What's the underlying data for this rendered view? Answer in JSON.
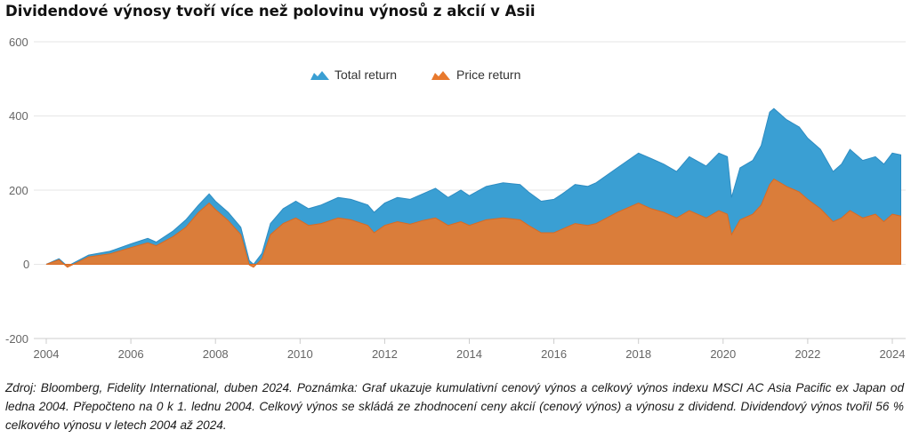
{
  "title": "Dividendové výnosy tvoří více než polovinu výnosů z akcií v Asii",
  "note": "Zdroj: Bloomberg, Fidelity International, duben 2024. Poznámka: Graf ukazuje kumulativní cenový výnos a celkový výnos indexu MSCI AC Asia Pacific ex Japan od ledna 2004. Přepočteno na 0 k 1. lednu 2004. Celkový výnos se skládá ze zhodnocení ceny akcií (cenový výnos) a výnosu z dividend. Dividendový výnos tvořil 56 % celkového výnosu v letech 2004 až 2024.",
  "colors": {
    "total": "#3a9fd3",
    "price": "#e8792d",
    "grid": "#e6e6e6",
    "axis": "#cccccc"
  },
  "chart_data": {
    "type": "area",
    "ylim": [
      -200,
      600
    ],
    "xlim": [
      2004,
      2024.35
    ],
    "yticks": [
      "600",
      "400",
      "200",
      "0",
      "-200"
    ],
    "xticks": [
      "2004",
      "2006",
      "2008",
      "2010",
      "2012",
      "2014",
      "2016",
      "2018",
      "2020",
      "2022",
      "2024"
    ],
    "legend": {
      "position": "top-center"
    },
    "series": [
      {
        "name": "Total return",
        "x": [
          2004.0,
          2004.3,
          2004.5,
          2005.0,
          2005.5,
          2006.0,
          2006.4,
          2006.6,
          2007.0,
          2007.3,
          2007.6,
          2007.85,
          2008.0,
          2008.3,
          2008.6,
          2008.8,
          2008.9,
          2009.1,
          2009.3,
          2009.6,
          2009.9,
          2010.2,
          2010.5,
          2010.9,
          2011.2,
          2011.6,
          2011.75,
          2012.0,
          2012.3,
          2012.6,
          2012.9,
          2013.2,
          2013.5,
          2013.8,
          2014.0,
          2014.4,
          2014.8,
          2015.2,
          2015.4,
          2015.7,
          2016.0,
          2016.2,
          2016.5,
          2016.8,
          2017.0,
          2017.5,
          2018.0,
          2018.3,
          2018.6,
          2018.9,
          2019.2,
          2019.6,
          2019.9,
          2020.1,
          2020.2,
          2020.4,
          2020.7,
          2020.9,
          2021.1,
          2021.2,
          2021.5,
          2021.8,
          2022.0,
          2022.3,
          2022.6,
          2022.8,
          2023.0,
          2023.3,
          2023.6,
          2023.8,
          2024.0,
          2024.2
        ],
        "values": [
          0,
          15,
          -5,
          25,
          35,
          55,
          70,
          60,
          90,
          120,
          160,
          190,
          170,
          140,
          100,
          10,
          0,
          30,
          110,
          150,
          170,
          150,
          160,
          180,
          175,
          160,
          140,
          165,
          180,
          175,
          190,
          205,
          180,
          200,
          185,
          210,
          220,
          215,
          195,
          170,
          175,
          190,
          215,
          210,
          220,
          260,
          300,
          285,
          270,
          250,
          290,
          265,
          300,
          290,
          180,
          260,
          280,
          320,
          410,
          420,
          390,
          370,
          340,
          310,
          250,
          270,
          310,
          280,
          290,
          270,
          300,
          295
        ]
      },
      {
        "name": "Price return",
        "x": [
          2004.0,
          2004.3,
          2004.5,
          2005.0,
          2005.5,
          2006.0,
          2006.4,
          2006.6,
          2007.0,
          2007.3,
          2007.6,
          2007.85,
          2008.0,
          2008.3,
          2008.6,
          2008.8,
          2008.9,
          2009.1,
          2009.3,
          2009.6,
          2009.9,
          2010.2,
          2010.5,
          2010.9,
          2011.2,
          2011.6,
          2011.75,
          2012.0,
          2012.3,
          2012.6,
          2012.9,
          2013.2,
          2013.5,
          2013.8,
          2014.0,
          2014.4,
          2014.8,
          2015.2,
          2015.4,
          2015.7,
          2016.0,
          2016.2,
          2016.5,
          2016.8,
          2017.0,
          2017.5,
          2018.0,
          2018.3,
          2018.6,
          2018.9,
          2019.2,
          2019.6,
          2019.9,
          2020.1,
          2020.2,
          2020.4,
          2020.7,
          2020.9,
          2021.1,
          2021.2,
          2021.5,
          2021.8,
          2022.0,
          2022.3,
          2022.6,
          2022.8,
          2023.0,
          2023.3,
          2023.6,
          2023.8,
          2024.0,
          2024.2
        ],
        "values": [
          0,
          12,
          -8,
          20,
          28,
          45,
          58,
          50,
          75,
          100,
          140,
          165,
          148,
          118,
          80,
          -2,
          -8,
          15,
          80,
          110,
          125,
          105,
          110,
          125,
          120,
          105,
          85,
          105,
          115,
          108,
          118,
          125,
          105,
          115,
          105,
          120,
          125,
          120,
          105,
          85,
          85,
          95,
          110,
          105,
          110,
          140,
          165,
          150,
          140,
          125,
          145,
          125,
          145,
          135,
          80,
          120,
          135,
          160,
          215,
          230,
          210,
          195,
          175,
          150,
          115,
          125,
          145,
          125,
          135,
          115,
          135,
          130
        ]
      }
    ]
  }
}
